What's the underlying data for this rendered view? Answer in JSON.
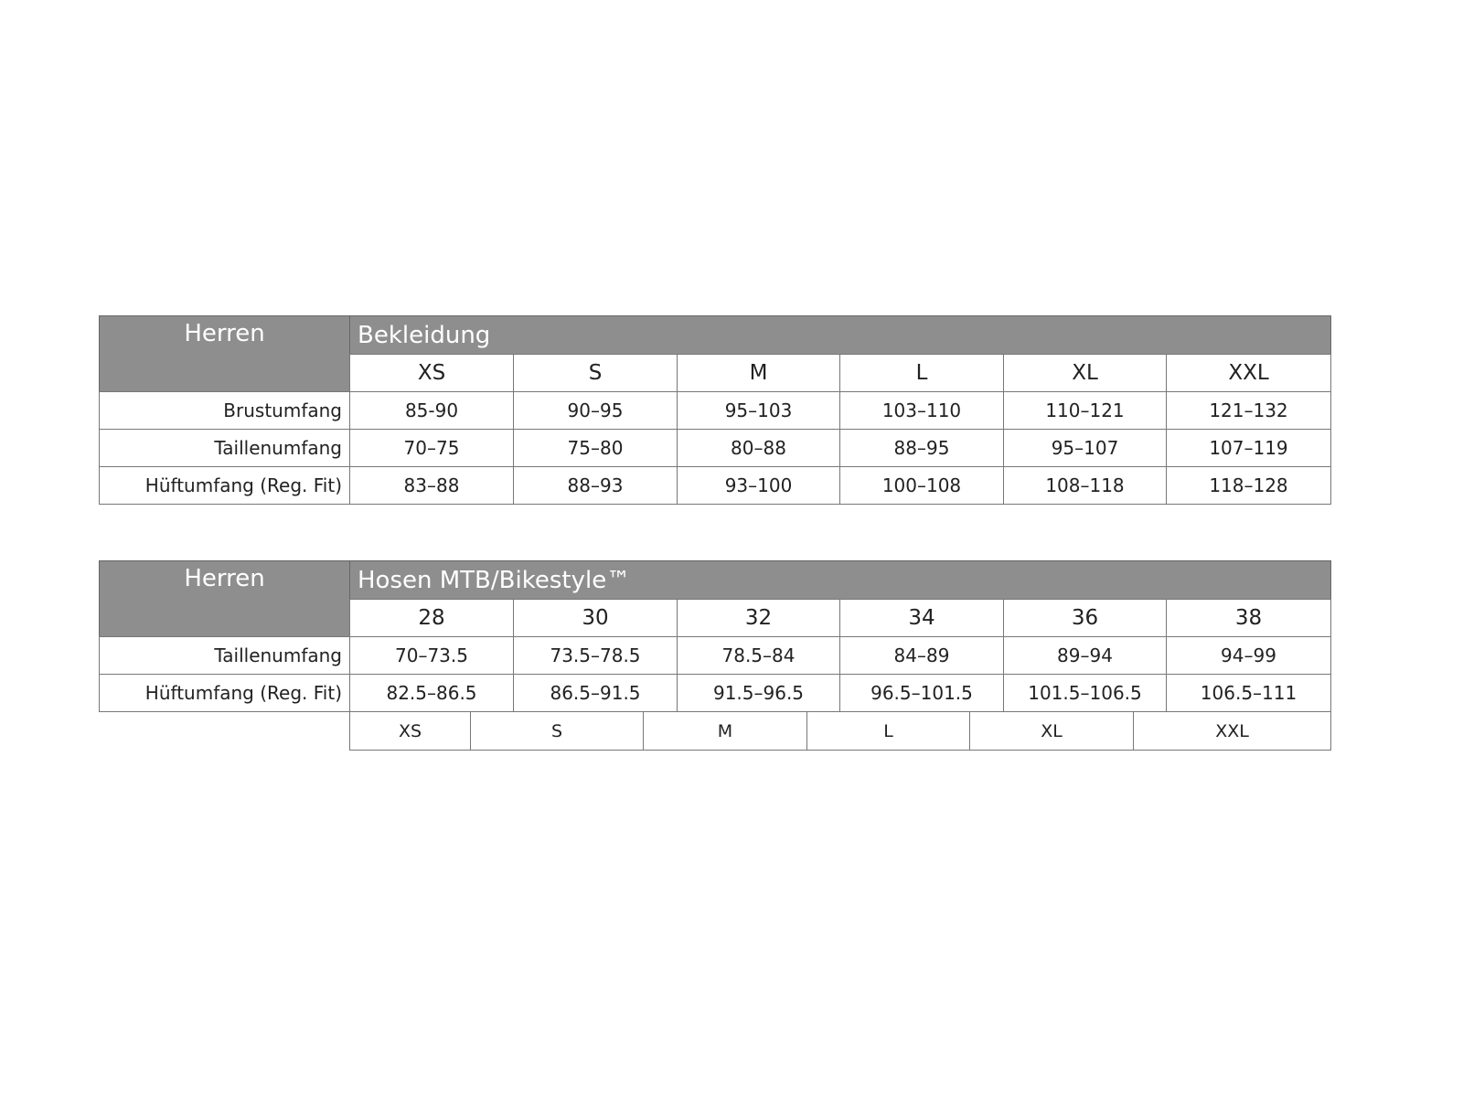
{
  "table1": {
    "corner": "Herren",
    "title": "Bekleidung",
    "sizes": [
      "XS",
      "S",
      "M",
      "L",
      "XL",
      "XXL"
    ],
    "rows": [
      {
        "label": "Brustumfang",
        "values": [
          "85-90",
          "90–95",
          "95–103",
          "103–110",
          "110–121",
          "121–132"
        ]
      },
      {
        "label": "Taillenumfang",
        "values": [
          "70–75",
          "75–80",
          "80–88",
          "88–95",
          "95–107",
          "107–119"
        ]
      },
      {
        "label": "Hüftumfang (Reg. Fit)",
        "values": [
          "83–88",
          "88–93",
          "93–100",
          "100–108",
          "108–118",
          "118–128"
        ]
      }
    ]
  },
  "table2": {
    "corner": "Herren",
    "title": "Hosen MTB/Bikestyle™",
    "sizes": [
      "28",
      "30",
      "32",
      "34",
      "36",
      "38"
    ],
    "rows": [
      {
        "label": "Taillenumfang",
        "values": [
          "70–73.5",
          "73.5–78.5",
          "78.5–84",
          "84–89",
          "89–94",
          "94–99"
        ]
      },
      {
        "label": "Hüftumfang (Reg. Fit)",
        "values": [
          "82.5–86.5",
          "86.5–91.5",
          "91.5–96.5",
          "96.5–101.5",
          "101.5–106.5",
          "106.5–111"
        ]
      }
    ],
    "letter_sizes": [
      "XS",
      "S",
      "M",
      "L",
      "XL",
      "XXL"
    ]
  },
  "colors": {
    "header_gray": "#8e8e8e",
    "border": "#777777"
  }
}
